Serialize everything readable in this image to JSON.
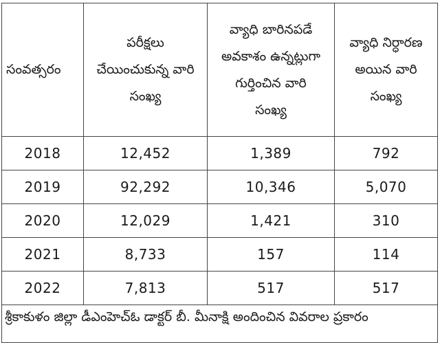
{
  "table": {
    "headers": [
      "సంవత్సరం",
      "పరీక్షలు చేయించుకున్న వారి సంఖ్య",
      "వ్యాధి బారినపడే అవకాశం ఉన్నట్లుగా గుర్తించిన వారి సంఖ్య",
      "వ్యాధి నిర్ధారణ అయిన వారి సంఖ్య"
    ],
    "header_lines": [
      [
        "సంవత్సరం"
      ],
      [
        "పరీక్షలు",
        "చేయించుకున్న వారి",
        "సంఖ్య"
      ],
      [
        "వ్యాధి బారినపడే",
        "అవకాశం ఉన్నట్లుగా",
        "గుర్తించిన వారి",
        "సంఖ్య"
      ],
      [
        "వ్యాధి నిర్ధారణ",
        "అయిన వారి",
        "సంఖ్య"
      ]
    ],
    "rows": [
      {
        "year": "2018",
        "tested": "12,452",
        "at_risk": "1,389",
        "diagnosed": "792"
      },
      {
        "year": "2019",
        "tested": "92,292",
        "at_risk": "10,346",
        "diagnosed": "5,070"
      },
      {
        "year": "2020",
        "tested": "12,029",
        "at_risk": "1,421",
        "diagnosed": "310"
      },
      {
        "year": "2021",
        "tested": "8,733",
        "at_risk": "157",
        "diagnosed": "114"
      },
      {
        "year": "2022",
        "tested": "7,813",
        "at_risk": "517",
        "diagnosed": "517"
      }
    ],
    "footer": "శ్రీకాకుళం జిల్లా డీఎంహెచ్‌ఓ డాక్టర్ బీ. మీనాక్షి అందించిన వివరాల ప్రకారం"
  },
  "colors": {
    "border": "#444444",
    "text": "#1a1a1a",
    "background": "#ffffff"
  }
}
